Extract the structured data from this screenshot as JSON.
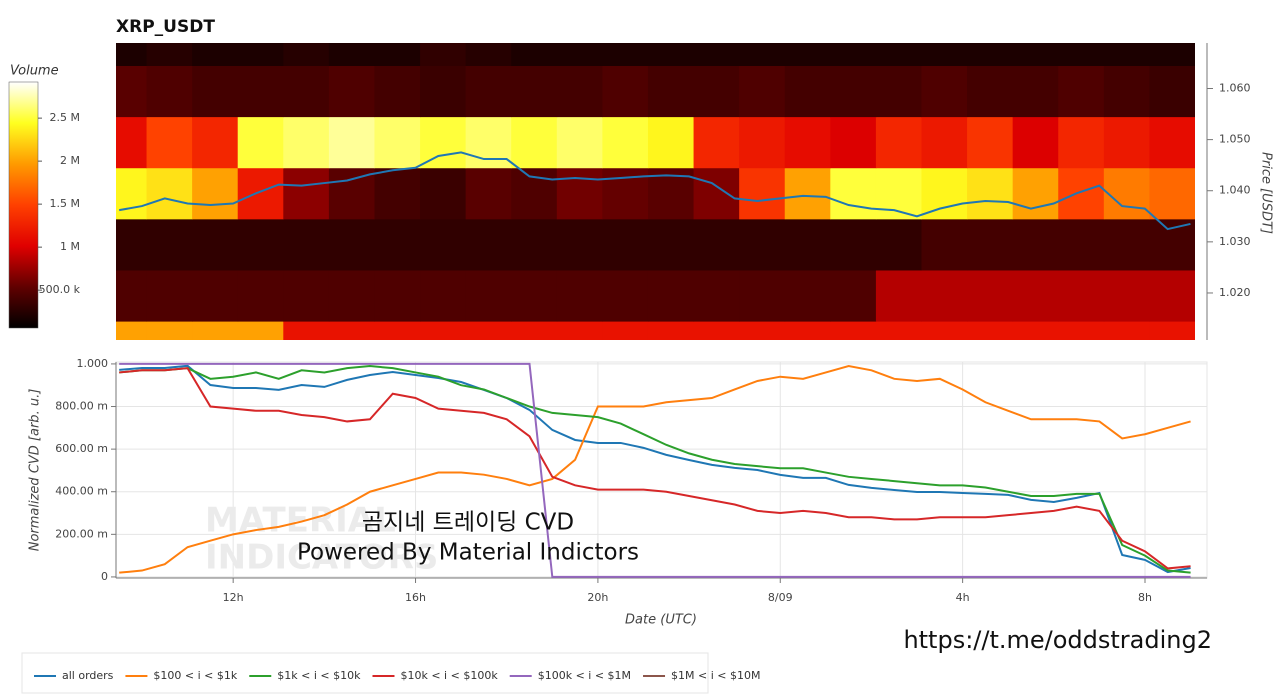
{
  "chart_data": [
    {
      "type": "heatmap",
      "title": "XRP_USDT",
      "y_label": "Price [USDT]",
      "colorbar_label": "Volume",
      "xlim": [
        9.43,
        33.1
      ],
      "ylim": [
        1.0108,
        1.0689
      ],
      "yticks": [
        {
          "value": 1.02,
          "label": "1.020"
        },
        {
          "value": 1.03,
          "label": "1.030"
        },
        {
          "value": 1.04,
          "label": "1.040"
        },
        {
          "value": 1.05,
          "label": "1.050"
        },
        {
          "value": 1.06,
          "label": "1.060"
        }
      ],
      "clim": [
        60000,
        2920000
      ],
      "cticks": [
        {
          "value": 500000,
          "label": "500.0 k"
        },
        {
          "value": 1000000,
          "label": "1 M"
        },
        {
          "value": 1500000,
          "label": "1.5 M"
        },
        {
          "value": 2000000,
          "label": "2 M"
        },
        {
          "value": 2500000,
          "label": "2.5 M"
        }
      ],
      "colormap": [
        "#000000",
        "#600000",
        "#e00000",
        "#ff4000",
        "#ff9a00",
        "#ffff20",
        "#ffffff"
      ],
      "x_edges": [
        9.1,
        10.1,
        11.1,
        12.1,
        13.1,
        14.1,
        15.1,
        16.1,
        17.1,
        18.1,
        19.1,
        20.1,
        21.1,
        22.1,
        23.1,
        24.1,
        25.1,
        26.1,
        27.1,
        28.1,
        29.1,
        30.1,
        31.1,
        32.1,
        33.1
      ],
      "y_edges": [
        1.0045,
        1.0145,
        1.0245,
        1.0345,
        1.0445,
        1.0545,
        1.0645,
        1.0745
      ],
      "z": [
        [
          2000000,
          2000000,
          2000000,
          2000000,
          1150000,
          1150000,
          1150000,
          1150000,
          1150000,
          1150000,
          1150000,
          1150000,
          1150000,
          1150000,
          1150000,
          1150000,
          1150000,
          1150000,
          1150000,
          1150000,
          1150000,
          1150000,
          1150000,
          1150000
        ],
        [
          450000,
          450000,
          450000,
          450000,
          450000,
          450000,
          450000,
          450000,
          450000,
          450000,
          450000,
          450000,
          450000,
          450000,
          450000,
          450000,
          450000,
          850000,
          850000,
          850000,
          850000,
          850000,
          850000,
          850000
        ],
        [
          300000,
          300000,
          300000,
          300000,
          300000,
          300000,
          300000,
          300000,
          300000,
          300000,
          300000,
          300000,
          300000,
          300000,
          300000,
          300000,
          300000,
          300000,
          400000,
          400000,
          400000,
          400000,
          400000,
          400000
        ],
        [
          2400000,
          2300000,
          2000000,
          1200000,
          700000,
          500000,
          400000,
          350000,
          500000,
          450000,
          600000,
          550000,
          500000,
          650000,
          1400000,
          2000000,
          2500000,
          2500000,
          2400000,
          2300000,
          2000000,
          1500000,
          1800000,
          1700000
        ],
        [
          1100000,
          1500000,
          1300000,
          2500000,
          2600000,
          2700000,
          2600000,
          2500000,
          2600000,
          2500000,
          2600000,
          2500000,
          2400000,
          1300000,
          1200000,
          1100000,
          1000000,
          1300000,
          1200000,
          1400000,
          1000000,
          1300000,
          1200000,
          1100000
        ],
        [
          500000,
          450000,
          400000,
          400000,
          400000,
          450000,
          400000,
          350000,
          400000,
          400000,
          400000,
          450000,
          400000,
          400000,
          450000,
          400000,
          400000,
          400000,
          450000,
          400000,
          400000,
          450000,
          400000,
          350000
        ],
        [
          200000,
          250000,
          200000,
          200000,
          250000,
          200000,
          200000,
          300000,
          250000,
          200000,
          200000,
          200000,
          200000,
          200000,
          200000,
          200000,
          200000,
          200000,
          200000,
          200000,
          200000,
          200000,
          200000,
          200000
        ]
      ],
      "x": [
        9.5,
        10,
        10.5,
        11,
        11.5,
        12,
        12.5,
        13,
        13.5,
        14,
        14.5,
        15,
        15.5,
        16,
        16.5,
        17,
        17.5,
        18,
        18.5,
        19,
        19.5,
        20,
        20.5,
        21,
        21.5,
        22,
        22.5,
        23,
        23.5,
        24,
        24.5,
        25,
        25.5,
        26,
        26.5,
        27,
        27.5,
        28,
        28.5,
        29,
        29.5,
        30,
        30.5,
        31,
        31.5,
        32,
        32.5,
        33
      ],
      "line": {
        "color": "#1f77b4",
        "values": [
          1.0362,
          1.037,
          1.0385,
          1.0375,
          1.0372,
          1.0375,
          1.0395,
          1.0412,
          1.041,
          1.0415,
          1.042,
          1.0432,
          1.044,
          1.0445,
          1.0468,
          1.0475,
          1.0462,
          1.0462,
          1.0428,
          1.0422,
          1.0425,
          1.0422,
          1.0425,
          1.0428,
          1.043,
          1.0428,
          1.0415,
          1.0385,
          1.038,
          1.0385,
          1.039,
          1.0388,
          1.0372,
          1.0365,
          1.0362,
          1.035,
          1.0365,
          1.0375,
          1.038,
          1.0378,
          1.0365,
          1.0375,
          1.0395,
          1.041,
          1.037,
          1.0365,
          1.0325,
          1.0335
        ]
      }
    },
    {
      "type": "line",
      "x_label": "Date (UTC)",
      "y_label": "Normalized CVD [arb. u.]",
      "grid": true,
      "legend": "bottom",
      "xlim": [
        9.43,
        33.36
      ],
      "ylim": [
        -0.005,
        1.009
      ],
      "xticks": [
        {
          "value": 12,
          "label": "12h"
        },
        {
          "value": 16,
          "label": "16h"
        },
        {
          "value": 20,
          "label": "20h"
        },
        {
          "value": 24,
          "label": "8/09"
        },
        {
          "value": 28,
          "label": "4h"
        },
        {
          "value": 32,
          "label": "8h"
        }
      ],
      "yticks": [
        0,
        {
          "value": 0.2,
          "label": "200.00 m"
        },
        {
          "value": 0.4,
          "label": "400.00 m"
        },
        {
          "value": 0.6,
          "label": "600.00 m"
        },
        {
          "value": 0.8,
          "label": "800.00 m"
        },
        {
          "value": 1,
          "label": "1.000"
        }
      ],
      "watermark": [
        "MATERIAL",
        "INDICATORS"
      ],
      "annotations": [
        "곰지네 트레이딩 CVD",
        "Powered By Material Indictors"
      ],
      "x": [
        9.5,
        10,
        10.5,
        11,
        11.5,
        12,
        12.5,
        13,
        13.5,
        14,
        14.5,
        15,
        15.5,
        16,
        16.5,
        17,
        17.5,
        18,
        18.5,
        19,
        19.5,
        20,
        20.5,
        21,
        21.5,
        22,
        22.5,
        23,
        23.5,
        24,
        24.5,
        25,
        25.5,
        26,
        26.5,
        27,
        27.5,
        28,
        28.5,
        29,
        29.5,
        30,
        30.5,
        31,
        31.5,
        32,
        32.5,
        33
      ],
      "series": [
        {
          "name": "all orders",
          "color": "#1f77b4",
          "values": [
            0.972,
            0.981,
            0.981,
            0.991,
            0.901,
            0.887,
            0.887,
            0.878,
            0.901,
            0.892,
            0.925,
            0.948,
            0.962,
            0.948,
            0.934,
            0.915,
            0.878,
            0.84,
            0.784,
            0.69,
            0.643,
            0.629,
            0.629,
            0.606,
            0.573,
            0.549,
            0.526,
            0.512,
            0.502,
            0.479,
            0.465,
            0.465,
            0.432,
            0.418,
            0.408,
            0.399,
            0.399,
            0.394,
            0.39,
            0.385,
            0.362,
            0.352,
            0.371,
            0.394,
            0.103,
            0.08,
            0.023,
            0.042
          ]
        },
        {
          "name": "$100 < i < $1k",
          "color": "#ff7f0e",
          "values": [
            0.02,
            0.03,
            0.06,
            0.14,
            0.17,
            0.2,
            0.22,
            0.235,
            0.26,
            0.29,
            0.34,
            0.4,
            0.43,
            0.46,
            0.49,
            0.49,
            0.48,
            0.46,
            0.43,
            0.46,
            0.55,
            0.8,
            0.8,
            0.8,
            0.82,
            0.83,
            0.84,
            0.88,
            0.92,
            0.94,
            0.93,
            0.96,
            0.99,
            0.97,
            0.93,
            0.92,
            0.93,
            0.88,
            0.82,
            0.78,
            0.74,
            0.74,
            0.74,
            0.73,
            0.65,
            0.67,
            0.7,
            0.73
          ]
        },
        {
          "name": "$1k < i < $10k",
          "color": "#2ca02c",
          "values": [
            0.96,
            0.97,
            0.97,
            0.98,
            0.93,
            0.94,
            0.96,
            0.93,
            0.97,
            0.96,
            0.98,
            0.99,
            0.98,
            0.96,
            0.94,
            0.9,
            0.88,
            0.84,
            0.8,
            0.77,
            0.76,
            0.75,
            0.72,
            0.67,
            0.62,
            0.58,
            0.55,
            0.53,
            0.52,
            0.51,
            0.51,
            0.49,
            0.47,
            0.46,
            0.45,
            0.44,
            0.43,
            0.43,
            0.42,
            0.4,
            0.38,
            0.38,
            0.39,
            0.39,
            0.15,
            0.1,
            0.03,
            0.02
          ]
        },
        {
          "name": "$10k < i < $100k",
          "color": "#d62728",
          "values": [
            0.96,
            0.97,
            0.97,
            0.98,
            0.8,
            0.79,
            0.78,
            0.78,
            0.76,
            0.75,
            0.73,
            0.74,
            0.86,
            0.84,
            0.79,
            0.78,
            0.77,
            0.74,
            0.66,
            0.47,
            0.43,
            0.41,
            0.41,
            0.41,
            0.4,
            0.38,
            0.36,
            0.34,
            0.31,
            0.3,
            0.31,
            0.3,
            0.28,
            0.28,
            0.27,
            0.27,
            0.28,
            0.28,
            0.28,
            0.29,
            0.3,
            0.31,
            0.33,
            0.31,
            0.17,
            0.12,
            0.04,
            0.05
          ]
        },
        {
          "name": "$100k < i < $1M",
          "color": "#9467bd",
          "values": [
            1,
            1,
            1,
            1,
            1,
            1,
            1,
            1,
            1,
            1,
            1,
            1,
            1,
            1,
            1,
            1,
            1,
            1,
            1,
            0,
            0,
            0,
            0,
            0,
            0,
            0,
            0,
            0,
            0,
            0,
            0,
            0,
            0,
            0,
            0,
            0,
            0,
            0,
            0,
            0,
            0,
            0,
            0,
            0,
            0,
            0,
            0,
            0
          ]
        },
        {
          "name": "$1M < i < $10M",
          "color": "#8c564b",
          "values": [
            null,
            null,
            null,
            null,
            null,
            null,
            null,
            null,
            null,
            null,
            null,
            null,
            null,
            null,
            null,
            null,
            null,
            null,
            null,
            null,
            null,
            null,
            null,
            null,
            null,
            null,
            null,
            null,
            null,
            null,
            null,
            null,
            null,
            null,
            null,
            null,
            null,
            null,
            null,
            null,
            null,
            null,
            null,
            null,
            null,
            null,
            null,
            null
          ]
        }
      ]
    }
  ],
  "link": "https://t.me/oddstrading2"
}
